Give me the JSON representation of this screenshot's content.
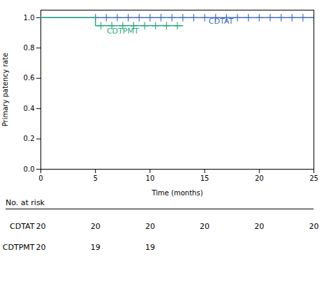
{
  "chart_data": {
    "type": "line",
    "xlabel": "Time (months)",
    "ylabel": "Primary patency rate",
    "xlim": [
      0,
      25
    ],
    "ylim": [
      0.0,
      1.05
    ],
    "xticks": [
      0,
      5,
      10,
      15,
      20,
      25
    ],
    "yticks": [
      {
        "value": 0.0,
        "label": "0.0"
      },
      0.2,
      0.4,
      0.6,
      0.8,
      {
        "value": 1.0,
        "label": "1.0"
      }
    ],
    "series": [
      {
        "name": "CDTAT",
        "color": "#4472C4",
        "x": [
          0,
          25
        ],
        "values": [
          1.0,
          1.0
        ],
        "marker": "plus",
        "censor_x": [
          5,
          6,
          7,
          8,
          9,
          10,
          11,
          12,
          13,
          14,
          15,
          16,
          17,
          18,
          19,
          20,
          21,
          22,
          23,
          24,
          25
        ],
        "censor_values": [
          1.0,
          1.0,
          1.0,
          1.0,
          1.0,
          1.0,
          1.0,
          1.0,
          1.0,
          1.0,
          1.0,
          1.0,
          1.0,
          1.0,
          1.0,
          1.0,
          1.0,
          1.0,
          1.0,
          1.0,
          1.0
        ]
      },
      {
        "name": "CDTPMT",
        "color": "#2EAA82",
        "x": [
          0,
          5,
          5,
          13
        ],
        "values": [
          1.0,
          1.0,
          0.947,
          0.947
        ],
        "marker": "plus",
        "censor_x": [
          5.5,
          6.5,
          7.5,
          8.5,
          9.5,
          10.5,
          11.5,
          12.5
        ],
        "censor_values": [
          0.947,
          0.947,
          0.947,
          0.947,
          0.947,
          0.947,
          0.947,
          0.947
        ]
      }
    ],
    "annotations": [
      {
        "text": "CDTAT",
        "x": 16.5,
        "y": 0.975,
        "color": "#4472C4"
      },
      {
        "text": "CDTPMT",
        "x": 7.5,
        "y": 0.91,
        "color": "#2EAA82"
      }
    ],
    "risk_table": {
      "title": "No. at risk",
      "x": [
        0,
        5,
        10,
        15,
        20,
        25
      ],
      "rows": [
        {
          "name": "CDTAT",
          "values": [
            20,
            20,
            20,
            20,
            20,
            20
          ]
        },
        {
          "name": "CDTPMT",
          "values": [
            20,
            19,
            19,
            null,
            null,
            null
          ]
        }
      ]
    }
  }
}
